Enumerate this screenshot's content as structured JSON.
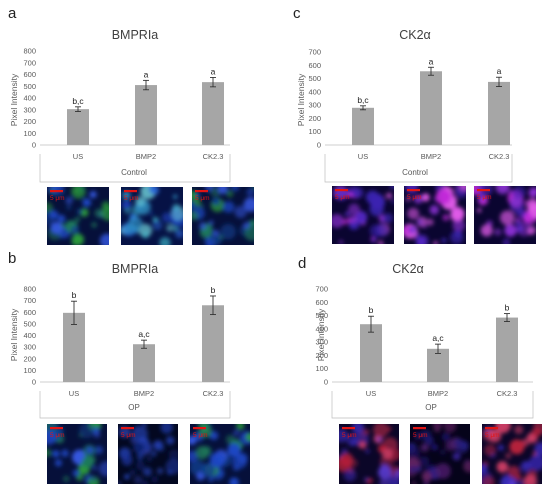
{
  "panels": [
    {
      "letter": "a",
      "title": "BMPRIa",
      "ylabel": "Pixel Intensity",
      "group_label": "Control",
      "micrographs": [
        {
          "scale_label": "5 μm",
          "stain": "blue-green"
        },
        {
          "scale_label": "5 μm",
          "stain": "blue-cyan"
        },
        {
          "scale_label": "5 μm",
          "stain": "blue-green"
        }
      ]
    },
    {
      "letter": "c",
      "title": "CK2α",
      "ylabel": "Pixel Intensity",
      "group_label": "Control",
      "micrographs": [
        {
          "scale_label": "5 μm",
          "stain": "magenta-blue"
        },
        {
          "scale_label": "5 μm",
          "stain": "magenta-blue"
        },
        {
          "scale_label": "5 μm",
          "stain": "magenta-blue"
        }
      ]
    },
    {
      "letter": "b",
      "title": "BMPRIa",
      "ylabel": "Pixel Intensity",
      "group_label": "OP",
      "micrographs": [
        {
          "scale_label": "5 μm",
          "stain": "blue-green"
        },
        {
          "scale_label": "5 μm",
          "stain": "blue-dark"
        },
        {
          "scale_label": "5 μm",
          "stain": "blue-green"
        }
      ]
    },
    {
      "letter": "d",
      "title": "CK2α",
      "ylabel": "Pixel Intensity",
      "group_label": "OP",
      "micrographs": [
        {
          "scale_label": "5 μm",
          "stain": "red-blue"
        },
        {
          "scale_label": "5 μm",
          "stain": "red-blue-dark"
        },
        {
          "scale_label": "5 μm",
          "stain": "red-blue"
        }
      ]
    }
  ],
  "colors": {
    "bar": "#a6a6a6",
    "axis": "#bfbfbf",
    "text": "#595959",
    "title": "#404040",
    "letter": "#222222",
    "scale_bar": "#e01515"
  },
  "chart_data": [
    {
      "type": "bar",
      "title": "BMPRIa",
      "xlabel": "Control",
      "ylabel": "Pixel Intensity",
      "categories": [
        "US",
        "BMP2",
        "CK2.3"
      ],
      "values": [
        305,
        510,
        535
      ],
      "errors": [
        20,
        40,
        40
      ],
      "significance": [
        "b,c",
        "a",
        "a"
      ],
      "ylim": [
        0,
        800
      ],
      "yticks": [
        0,
        100,
        200,
        300,
        400,
        500,
        600,
        700,
        800
      ]
    },
    {
      "type": "bar",
      "title": "CK2α",
      "xlabel": "Control",
      "ylabel": "Pixel Intensity",
      "categories": [
        "US",
        "BMP2",
        "CK2.3"
      ],
      "values": [
        280,
        555,
        475
      ],
      "errors": [
        15,
        30,
        35
      ],
      "significance": [
        "b,c",
        "a",
        "a"
      ],
      "ylim": [
        0,
        700
      ],
      "yticks": [
        0,
        100,
        200,
        300,
        400,
        500,
        600,
        700
      ]
    },
    {
      "type": "bar",
      "title": "BMPRIa",
      "xlabel": "OP",
      "ylabel": "Pixel Intensity",
      "categories": [
        "US",
        "BMP2",
        "CK2.3"
      ],
      "values": [
        595,
        325,
        660
      ],
      "errors": [
        100,
        35,
        80
      ],
      "significance": [
        "b",
        "a,c",
        "b"
      ],
      "ylim": [
        0,
        800
      ],
      "yticks": [
        0,
        100,
        200,
        300,
        400,
        500,
        600,
        700,
        800
      ]
    },
    {
      "type": "bar",
      "title": "CK2α",
      "xlabel": "OP",
      "ylabel": "Pixel Intensity",
      "categories": [
        "US",
        "BMP2",
        "CK2.3"
      ],
      "values": [
        435,
        250,
        485
      ],
      "errors": [
        60,
        35,
        30
      ],
      "significance": [
        "b",
        "a,c",
        "b"
      ],
      "ylim": [
        0,
        700
      ],
      "yticks": [
        0,
        100,
        200,
        300,
        400,
        500,
        600,
        700
      ]
    }
  ]
}
